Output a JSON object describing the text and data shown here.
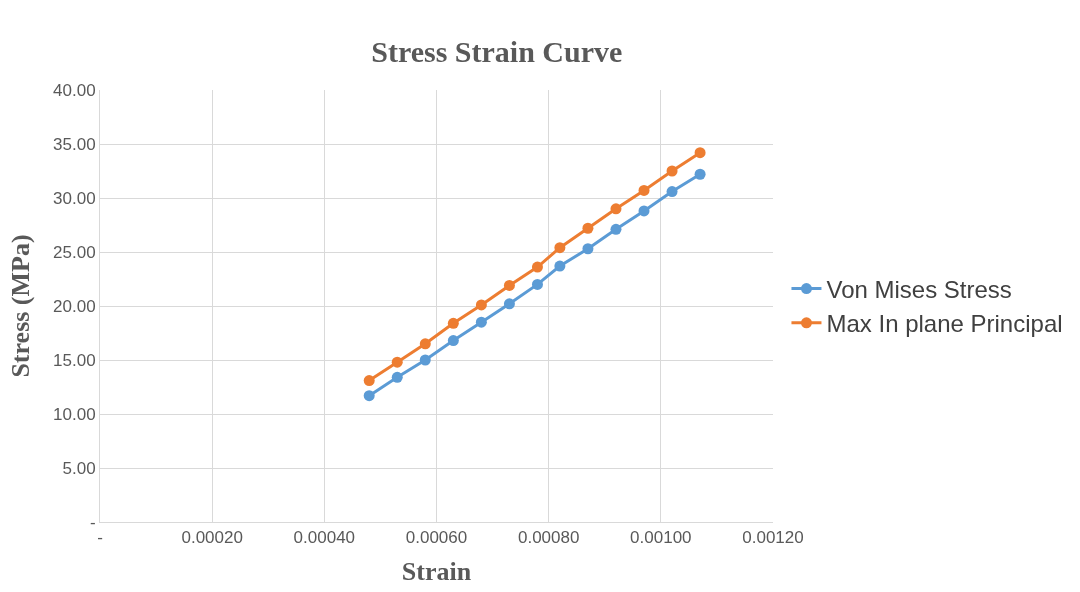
{
  "chart_data": {
    "type": "line",
    "title": "Stress Strain Curve",
    "xlabel": "Strain",
    "ylabel": "Stress (MPa)",
    "x": [
      0.00048,
      0.00053,
      0.00058,
      0.00063,
      0.00068,
      0.00073,
      0.00078,
      0.00082,
      0.00087,
      0.00092,
      0.00097,
      0.00102,
      0.00107
    ],
    "series": [
      {
        "name": "Von Mises Stress",
        "color": "#5b9bd5",
        "values": [
          11.7,
          13.4,
          15.0,
          16.8,
          18.5,
          20.2,
          22.0,
          23.7,
          25.3,
          27.1,
          28.8,
          30.6,
          32.2
        ]
      },
      {
        "name": "Max In plane Principal",
        "color": "#ed7d31",
        "values": [
          13.1,
          14.8,
          16.5,
          18.4,
          20.1,
          21.9,
          23.6,
          25.4,
          27.2,
          29.0,
          30.7,
          32.5,
          34.2
        ]
      }
    ],
    "xlim": [
      0,
      0.0012
    ],
    "xticks": [
      {
        "value": 0,
        "label": "-"
      },
      {
        "value": 0.0002,
        "label": "0.00020"
      },
      {
        "value": 0.0004,
        "label": "0.00040"
      },
      {
        "value": 0.0006,
        "label": "0.00060"
      },
      {
        "value": 0.0008,
        "label": "0.00080"
      },
      {
        "value": 0.001,
        "label": "0.00100"
      },
      {
        "value": 0.0012,
        "label": "0.00120"
      }
    ],
    "ylim": [
      0,
      40
    ],
    "yticks": [
      {
        "value": 0,
        "label": "-"
      },
      {
        "value": 5,
        "label": "5.00"
      },
      {
        "value": 10,
        "label": "10.00"
      },
      {
        "value": 15,
        "label": "15.00"
      },
      {
        "value": 20,
        "label": "20.00"
      },
      {
        "value": 25,
        "label": "25.00"
      },
      {
        "value": 30,
        "label": "30.00"
      },
      {
        "value": 35,
        "label": "35.00"
      },
      {
        "value": 40,
        "label": "40.00"
      }
    ],
    "grid": true,
    "legend": "right",
    "marker": "circle",
    "line_style": "solid"
  }
}
